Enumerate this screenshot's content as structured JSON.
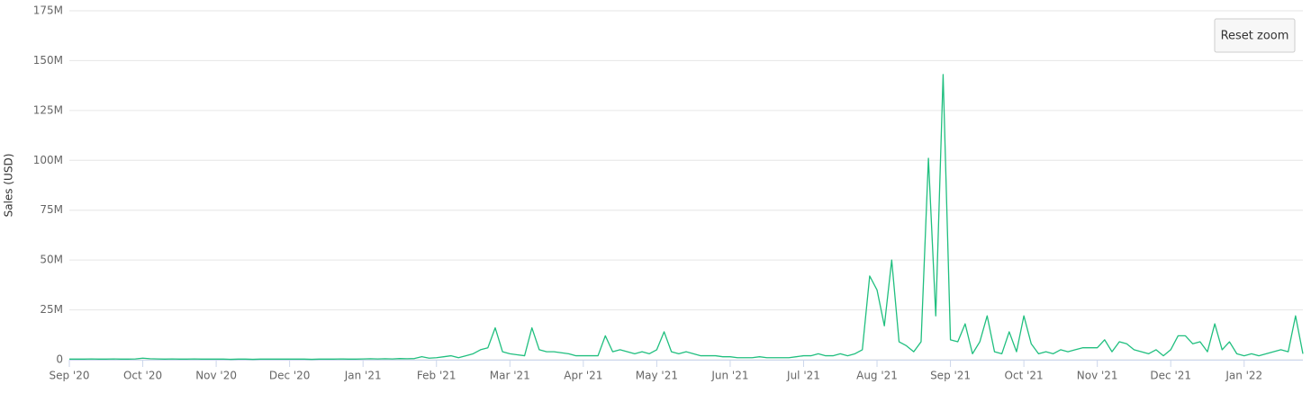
{
  "chart_data": {
    "type": "line",
    "y_title": "Sales (USD)",
    "button": "Reset zoom",
    "grid": true,
    "categories": [
      "Sep '20",
      null,
      null,
      null,
      null,
      null,
      null,
      null,
      null,
      null,
      "Oct '20",
      null,
      null,
      null,
      null,
      null,
      null,
      null,
      null,
      null,
      "Nov '20",
      null,
      null,
      null,
      null,
      null,
      null,
      null,
      null,
      null,
      "Dec '20",
      null,
      null,
      null,
      null,
      null,
      null,
      null,
      null,
      null,
      "Jan '21",
      null,
      null,
      null,
      null,
      null,
      null,
      null,
      null,
      null,
      "Feb '21",
      null,
      null,
      null,
      null,
      null,
      null,
      null,
      null,
      null,
      "Mar '21",
      null,
      null,
      null,
      null,
      null,
      null,
      null,
      null,
      null,
      "Apr '21",
      null,
      null,
      null,
      null,
      null,
      null,
      null,
      null,
      null,
      "May '21",
      null,
      null,
      null,
      null,
      null,
      null,
      null,
      null,
      null,
      "Jun '21",
      null,
      null,
      null,
      null,
      null,
      null,
      null,
      null,
      null,
      "Jul '21",
      null,
      null,
      null,
      null,
      null,
      null,
      null,
      null,
      null,
      "Aug '21",
      null,
      null,
      null,
      null,
      null,
      null,
      null,
      null,
      null,
      "Sep '21",
      null,
      null,
      null,
      null,
      null,
      null,
      null,
      null,
      null,
      "Oct '21",
      null,
      null,
      null,
      null,
      null,
      null,
      null,
      null,
      null,
      "Nov '21",
      null,
      null,
      null,
      null,
      null,
      null,
      null,
      null,
      null,
      "Dec '21",
      null,
      null,
      null,
      null,
      null,
      null,
      null,
      null,
      null,
      "Jan '22",
      null,
      null,
      null,
      null,
      null,
      null,
      null,
      null
    ],
    "values": [
      0.3,
      0.3,
      0.3,
      0.4,
      0.3,
      0.3,
      0.4,
      0.3,
      0.3,
      0.4,
      0.8,
      0.5,
      0.4,
      0.3,
      0.4,
      0.3,
      0.3,
      0.4,
      0.3,
      0.3,
      0.3,
      0.3,
      0.2,
      0.3,
      0.3,
      0.2,
      0.3,
      0.3,
      0.3,
      0.3,
      0.3,
      0.3,
      0.3,
      0.2,
      0.3,
      0.3,
      0.3,
      0.4,
      0.3,
      0.3,
      0.4,
      0.5,
      0.4,
      0.5,
      0.4,
      0.6,
      0.5,
      0.6,
      1.5,
      0.8,
      1,
      1.5,
      2,
      1,
      2,
      3,
      5,
      6,
      16,
      4,
      3,
      2.5,
      2,
      16,
      5,
      4,
      4,
      3.5,
      3,
      2,
      2,
      2,
      2,
      12,
      4,
      5,
      4,
      3,
      4,
      3,
      5,
      14,
      4,
      3,
      4,
      3,
      2,
      2,
      2,
      1.5,
      1.5,
      1,
      1,
      1,
      1.5,
      1,
      1,
      1,
      1,
      1.5,
      2,
      2,
      3,
      2,
      2,
      3,
      2,
      3,
      5,
      42,
      35,
      17,
      50,
      9,
      7,
      4,
      9,
      101,
      22,
      143,
      10,
      9,
      18,
      3,
      9,
      22,
      4,
      3,
      14,
      4,
      22,
      8,
      3,
      4,
      3,
      5,
      4,
      5,
      6,
      6,
      6,
      10,
      4,
      9,
      8,
      5,
      4,
      3,
      5,
      2,
      5,
      12,
      12,
      8,
      9,
      4,
      18,
      5,
      9,
      3,
      2,
      3,
      2,
      3,
      4,
      5,
      4,
      22,
      3
    ],
    "color": "#20bf7f",
    "ylim": [
      0,
      175
    ],
    "yticks": [
      0,
      {
        "value": 25,
        "label": "25M"
      },
      {
        "value": 50,
        "label": "50M"
      },
      {
        "value": 75,
        "label": "75M"
      },
      {
        "value": 100,
        "label": "100M"
      },
      {
        "value": 125,
        "label": "125M"
      },
      {
        "value": 150,
        "label": "150M"
      },
      {
        "value": 175,
        "label": "175M"
      }
    ]
  }
}
